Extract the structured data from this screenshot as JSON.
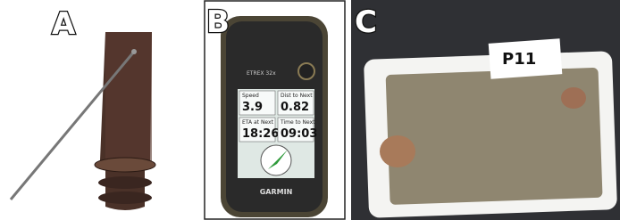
{
  "panels": [
    {
      "label": "A"
    },
    {
      "label": "B",
      "device": {
        "model": "ETREX 32x",
        "fields": [
          {
            "name": "Speed",
            "value": "3.9"
          },
          {
            "name": "Dist to Next",
            "value": "0.82"
          },
          {
            "name": "ETA at Next",
            "value": "18:26"
          },
          {
            "name": "Time to Next",
            "value": "09:03"
          }
        ],
        "brand": "GARMIN"
      }
    },
    {
      "label": "C",
      "sample_tag": "P11"
    }
  ]
}
